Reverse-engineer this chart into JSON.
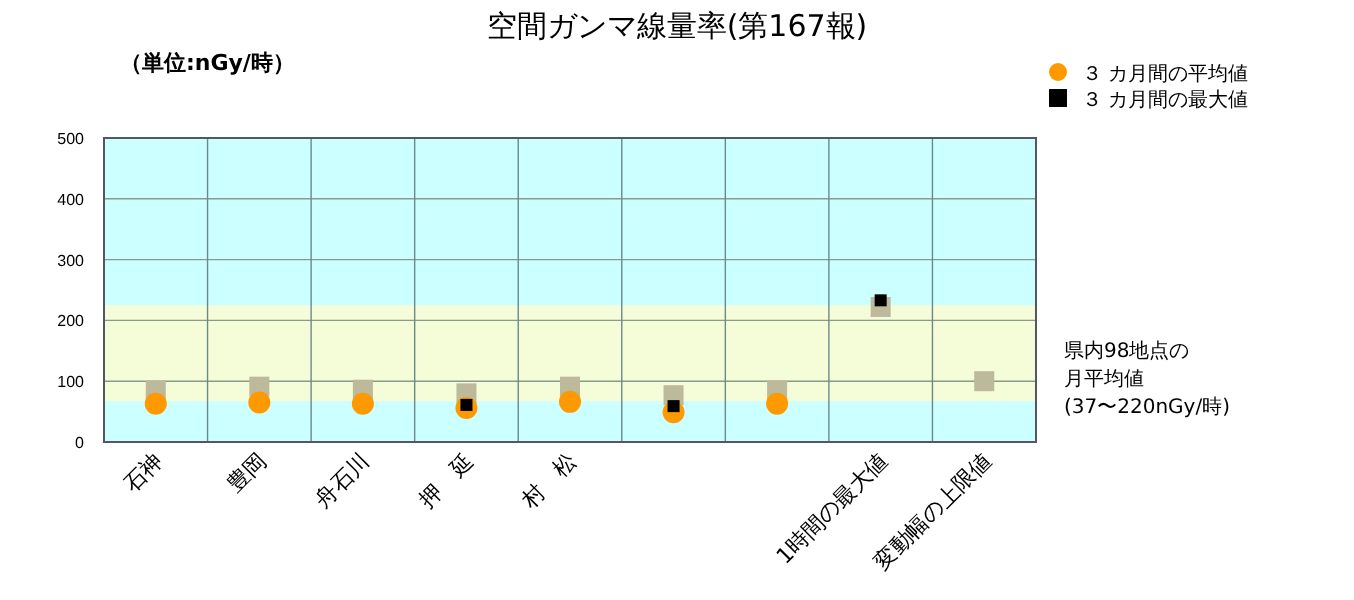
{
  "chart_data": {
    "type": "scatter",
    "title": "空間ガンマ線量率(第167報)",
    "subtitle": "（単位:nGy/時）",
    "categories": [
      "石神",
      "豊岡",
      "舟石川",
      "押　延",
      "村　松",
      null,
      null,
      "1時間の最大値",
      "変動幅の上限値"
    ],
    "ylim": [
      0,
      500
    ],
    "yticks": [
      0,
      100,
      200,
      300,
      400,
      500
    ],
    "grid": true,
    "legend": "top right",
    "bands": [
      {
        "axis": "y",
        "from": 67,
        "to": 225,
        "label": "県内98地点の月平均値(37〜220nGy/時)",
        "color": "#f5fcd8"
      }
    ],
    "series": [
      {
        "color": "#bdb99b",
        "marker": "square",
        "values": [
          85,
          91,
          86,
          80,
          91,
          77,
          85,
          222,
          100
        ]
      },
      {
        "name": "３ カ月間の平均値",
        "color": "#ff9900",
        "marker": "circle",
        "values": [
          63,
          65,
          63,
          56,
          66,
          49,
          63,
          null,
          null
        ]
      },
      {
        "name": "３ カ月間の最大値",
        "color": "#000000",
        "marker": "square",
        "values": [
          null,
          null,
          null,
          61,
          null,
          59,
          null,
          233,
          null
        ]
      }
    ]
  }
}
